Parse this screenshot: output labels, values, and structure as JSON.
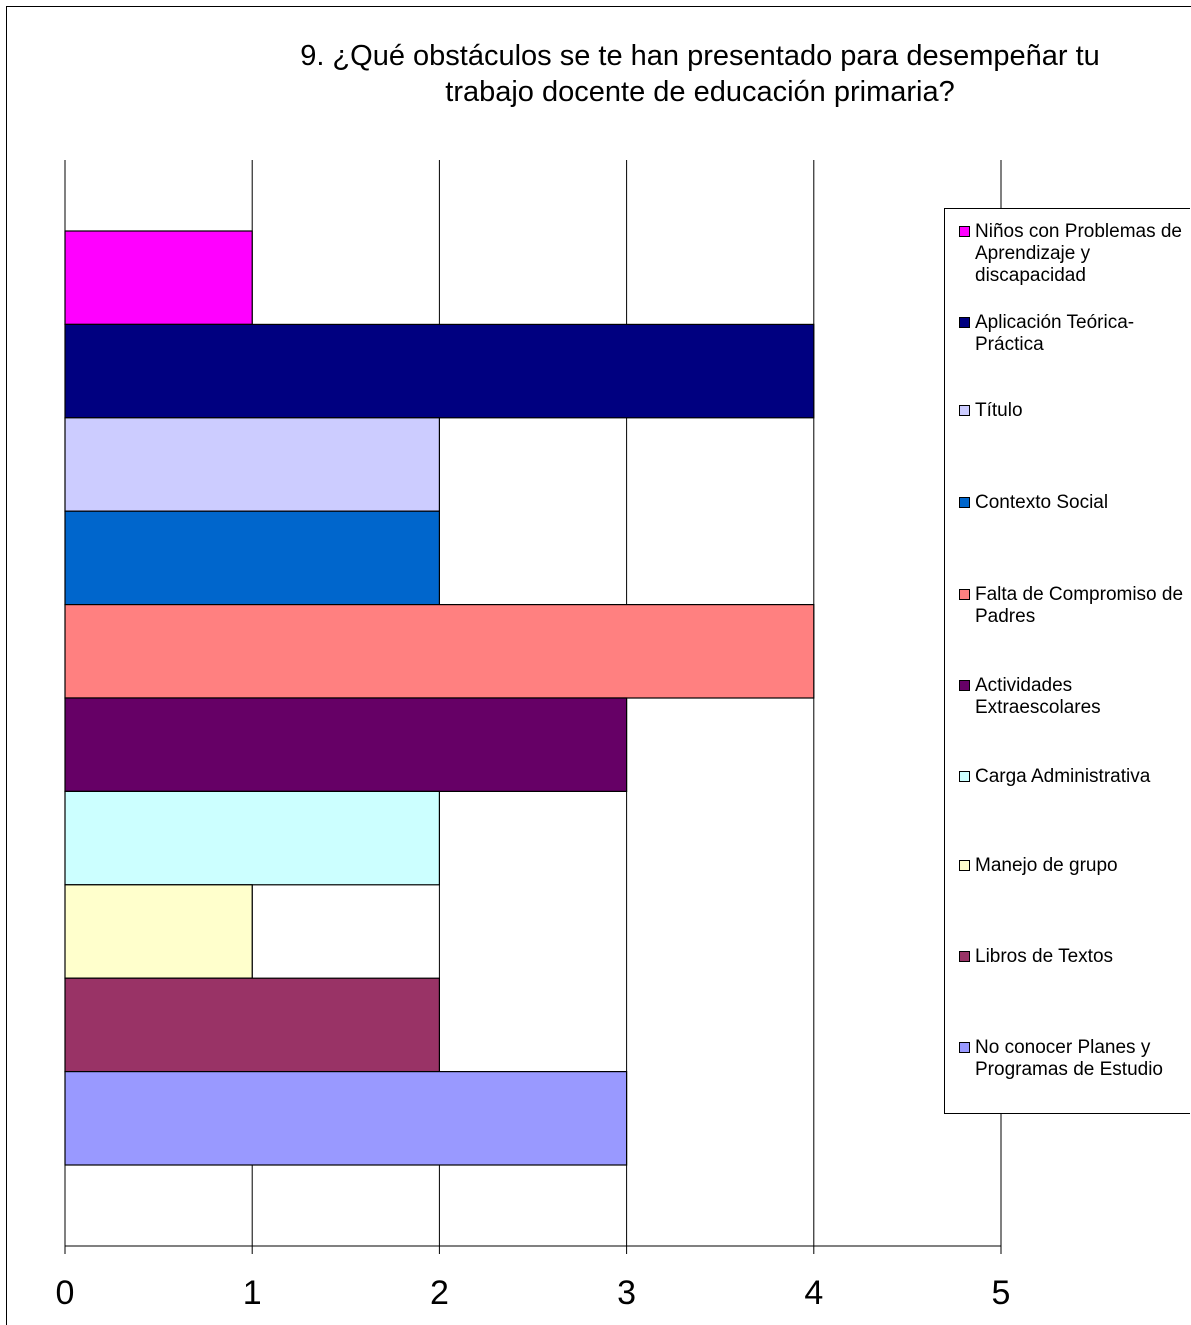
{
  "chart_data": {
    "type": "bar",
    "orientation": "horizontal",
    "title": "9. ¿Qué obstáculos se te han presentado para desempeñar tu\ntrabajo docente de educación primaria?",
    "xlabel": "",
    "ylabel": "",
    "xlim": [
      0,
      5
    ],
    "x_ticks": [
      "0",
      "1",
      "2",
      "3",
      "4",
      "5"
    ],
    "grid": "vertical",
    "legend_position": "right",
    "series": [
      {
        "name": "Niños con Problemas de Aprendizaje y discapacidad",
        "value": 1,
        "color": "#ff00ff"
      },
      {
        "name": "Aplicación Teórica-Práctica",
        "value": 4,
        "color": "#000080"
      },
      {
        "name": "Título",
        "value": 2,
        "color": "#ccccff"
      },
      {
        "name": "Contexto Social",
        "value": 2,
        "color": "#0066cc"
      },
      {
        "name": "Falta de Compromiso de Padres",
        "value": 4,
        "color": "#ff8080"
      },
      {
        "name": "Actividades Extraescolares",
        "value": 3,
        "color": "#660066"
      },
      {
        "name": "Carga Administrativa",
        "value": 2,
        "color": "#ccffff"
      },
      {
        "name": "Manejo de grupo",
        "value": 1,
        "color": "#ffffcc"
      },
      {
        "name": "Libros de Textos",
        "value": 2,
        "color": "#993366"
      },
      {
        "name": "No conocer Planes y Programas de Estudio",
        "value": 3,
        "color": "#9999ff"
      }
    ]
  }
}
